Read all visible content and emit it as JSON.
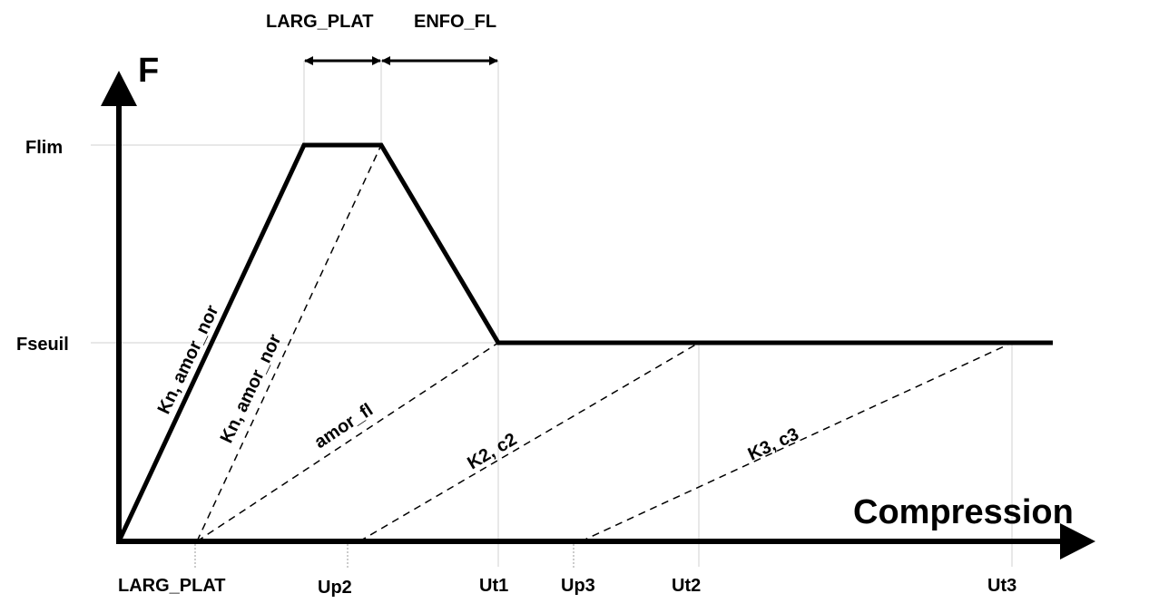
{
  "axes": {
    "y_label": "F",
    "x_label": "Compression"
  },
  "levels": {
    "flim": "Flim",
    "fseuil": "Fseuil"
  },
  "top_dimensions": {
    "larg_plat": "LARG_PLAT",
    "enfo_fl": "ENFO_FL"
  },
  "slope_labels": {
    "loading": "Kn, amor_nor",
    "unloading": "Kn, amor_nor",
    "amor_fl": "amor_fl",
    "k2": "K2, c2",
    "k3": "K3, c3"
  },
  "x_ticks": {
    "larg_plat": "LARG_PLAT",
    "up2": "Up2",
    "ut1": "Ut1",
    "up3": "Up3",
    "ut2": "Ut2",
    "ut3": "Ut3"
  },
  "colors": {
    "line": "#000000",
    "guide": "#d0d0d0"
  }
}
